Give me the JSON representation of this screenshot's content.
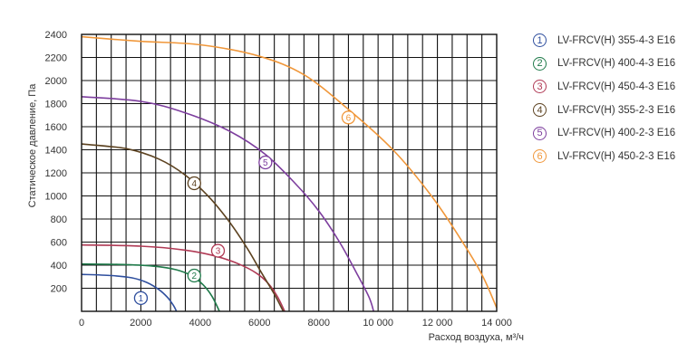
{
  "chart_data": {
    "type": "line",
    "title": "",
    "xlabel": "Расход воздуха, м³/ч",
    "ylabel": "Статическое давление, Па",
    "xlim": [
      0,
      14000
    ],
    "ylim": [
      0,
      2400
    ],
    "x_ticks": [
      0,
      2000,
      4000,
      6000,
      8000,
      10000,
      12000,
      14000
    ],
    "x_tick_labels": [
      "0",
      "2000",
      "4000",
      "6000",
      "8000",
      "10 000",
      "12 000",
      "14 000"
    ],
    "y_ticks": [
      200,
      400,
      600,
      800,
      1000,
      1200,
      1400,
      1600,
      1800,
      2000,
      2200,
      2400
    ],
    "y_tick_labels": [
      "200",
      "400",
      "600",
      "800",
      "1000",
      "1200",
      "1400",
      "1600",
      "1800",
      "2000",
      "2200",
      "2400"
    ],
    "grid": true,
    "legend_position": "right",
    "series": [
      {
        "name": "LV-FRCV(H) 355-4-3 E16",
        "marker": "1",
        "color": "#2f4f9e",
        "marker_at": [
          2000,
          115
        ],
        "points": [
          [
            0,
            320
          ],
          [
            1000,
            310
          ],
          [
            1700,
            290
          ],
          [
            2200,
            250
          ],
          [
            2600,
            190
          ],
          [
            2900,
            120
          ],
          [
            3100,
            50
          ],
          [
            3200,
            0
          ]
        ]
      },
      {
        "name": "LV-FRCV(H) 400-4-3 E16",
        "marker": "2",
        "color": "#1f7a4a",
        "marker_at": [
          3800,
          310
        ],
        "points": [
          [
            0,
            410
          ],
          [
            1500,
            405
          ],
          [
            2500,
            390
          ],
          [
            3200,
            360
          ],
          [
            3700,
            310
          ],
          [
            4100,
            230
          ],
          [
            4400,
            130
          ],
          [
            4650,
            0
          ]
        ]
      },
      {
        "name": "LV-FRCV(H) 450-4-3 E16",
        "marker": "3",
        "color": "#b03a55",
        "marker_at": [
          4600,
          525
        ],
        "points": [
          [
            0,
            575
          ],
          [
            2000,
            565
          ],
          [
            3500,
            530
          ],
          [
            4500,
            480
          ],
          [
            5300,
            410
          ],
          [
            5900,
            330
          ],
          [
            6300,
            240
          ],
          [
            6600,
            130
          ],
          [
            6850,
            0
          ]
        ]
      },
      {
        "name": "LV-FRCV(H) 355-2-3 E16",
        "marker": "4",
        "color": "#5c4220",
        "marker_at": [
          3800,
          1110
        ],
        "points": [
          [
            0,
            1450
          ],
          [
            1500,
            1410
          ],
          [
            2600,
            1320
          ],
          [
            3500,
            1180
          ],
          [
            4300,
            990
          ],
          [
            5000,
            770
          ],
          [
            5600,
            540
          ],
          [
            6100,
            320
          ],
          [
            6500,
            150
          ],
          [
            6800,
            0
          ]
        ]
      },
      {
        "name": "LV-FRCV(H) 400-2-3 E16",
        "marker": "5",
        "color": "#7d3e9e",
        "marker_at": [
          6200,
          1290
        ],
        "points": [
          [
            0,
            1860
          ],
          [
            2000,
            1820
          ],
          [
            3500,
            1720
          ],
          [
            5000,
            1560
          ],
          [
            6200,
            1360
          ],
          [
            7200,
            1110
          ],
          [
            8000,
            870
          ],
          [
            8700,
            600
          ],
          [
            9300,
            320
          ],
          [
            9700,
            120
          ],
          [
            9850,
            0
          ]
        ]
      },
      {
        "name": "LV-FRCV(H) 450-2-3 E16",
        "marker": "6",
        "color": "#f0973a",
        "marker_at": [
          9000,
          1680
        ],
        "points": [
          [
            0,
            2380
          ],
          [
            2000,
            2340
          ],
          [
            4000,
            2310
          ],
          [
            6000,
            2210
          ],
          [
            7500,
            2050
          ],
          [
            9000,
            1750
          ],
          [
            10500,
            1400
          ],
          [
            11800,
            1000
          ],
          [
            12800,
            620
          ],
          [
            13500,
            320
          ],
          [
            14000,
            30
          ]
        ]
      }
    ]
  }
}
